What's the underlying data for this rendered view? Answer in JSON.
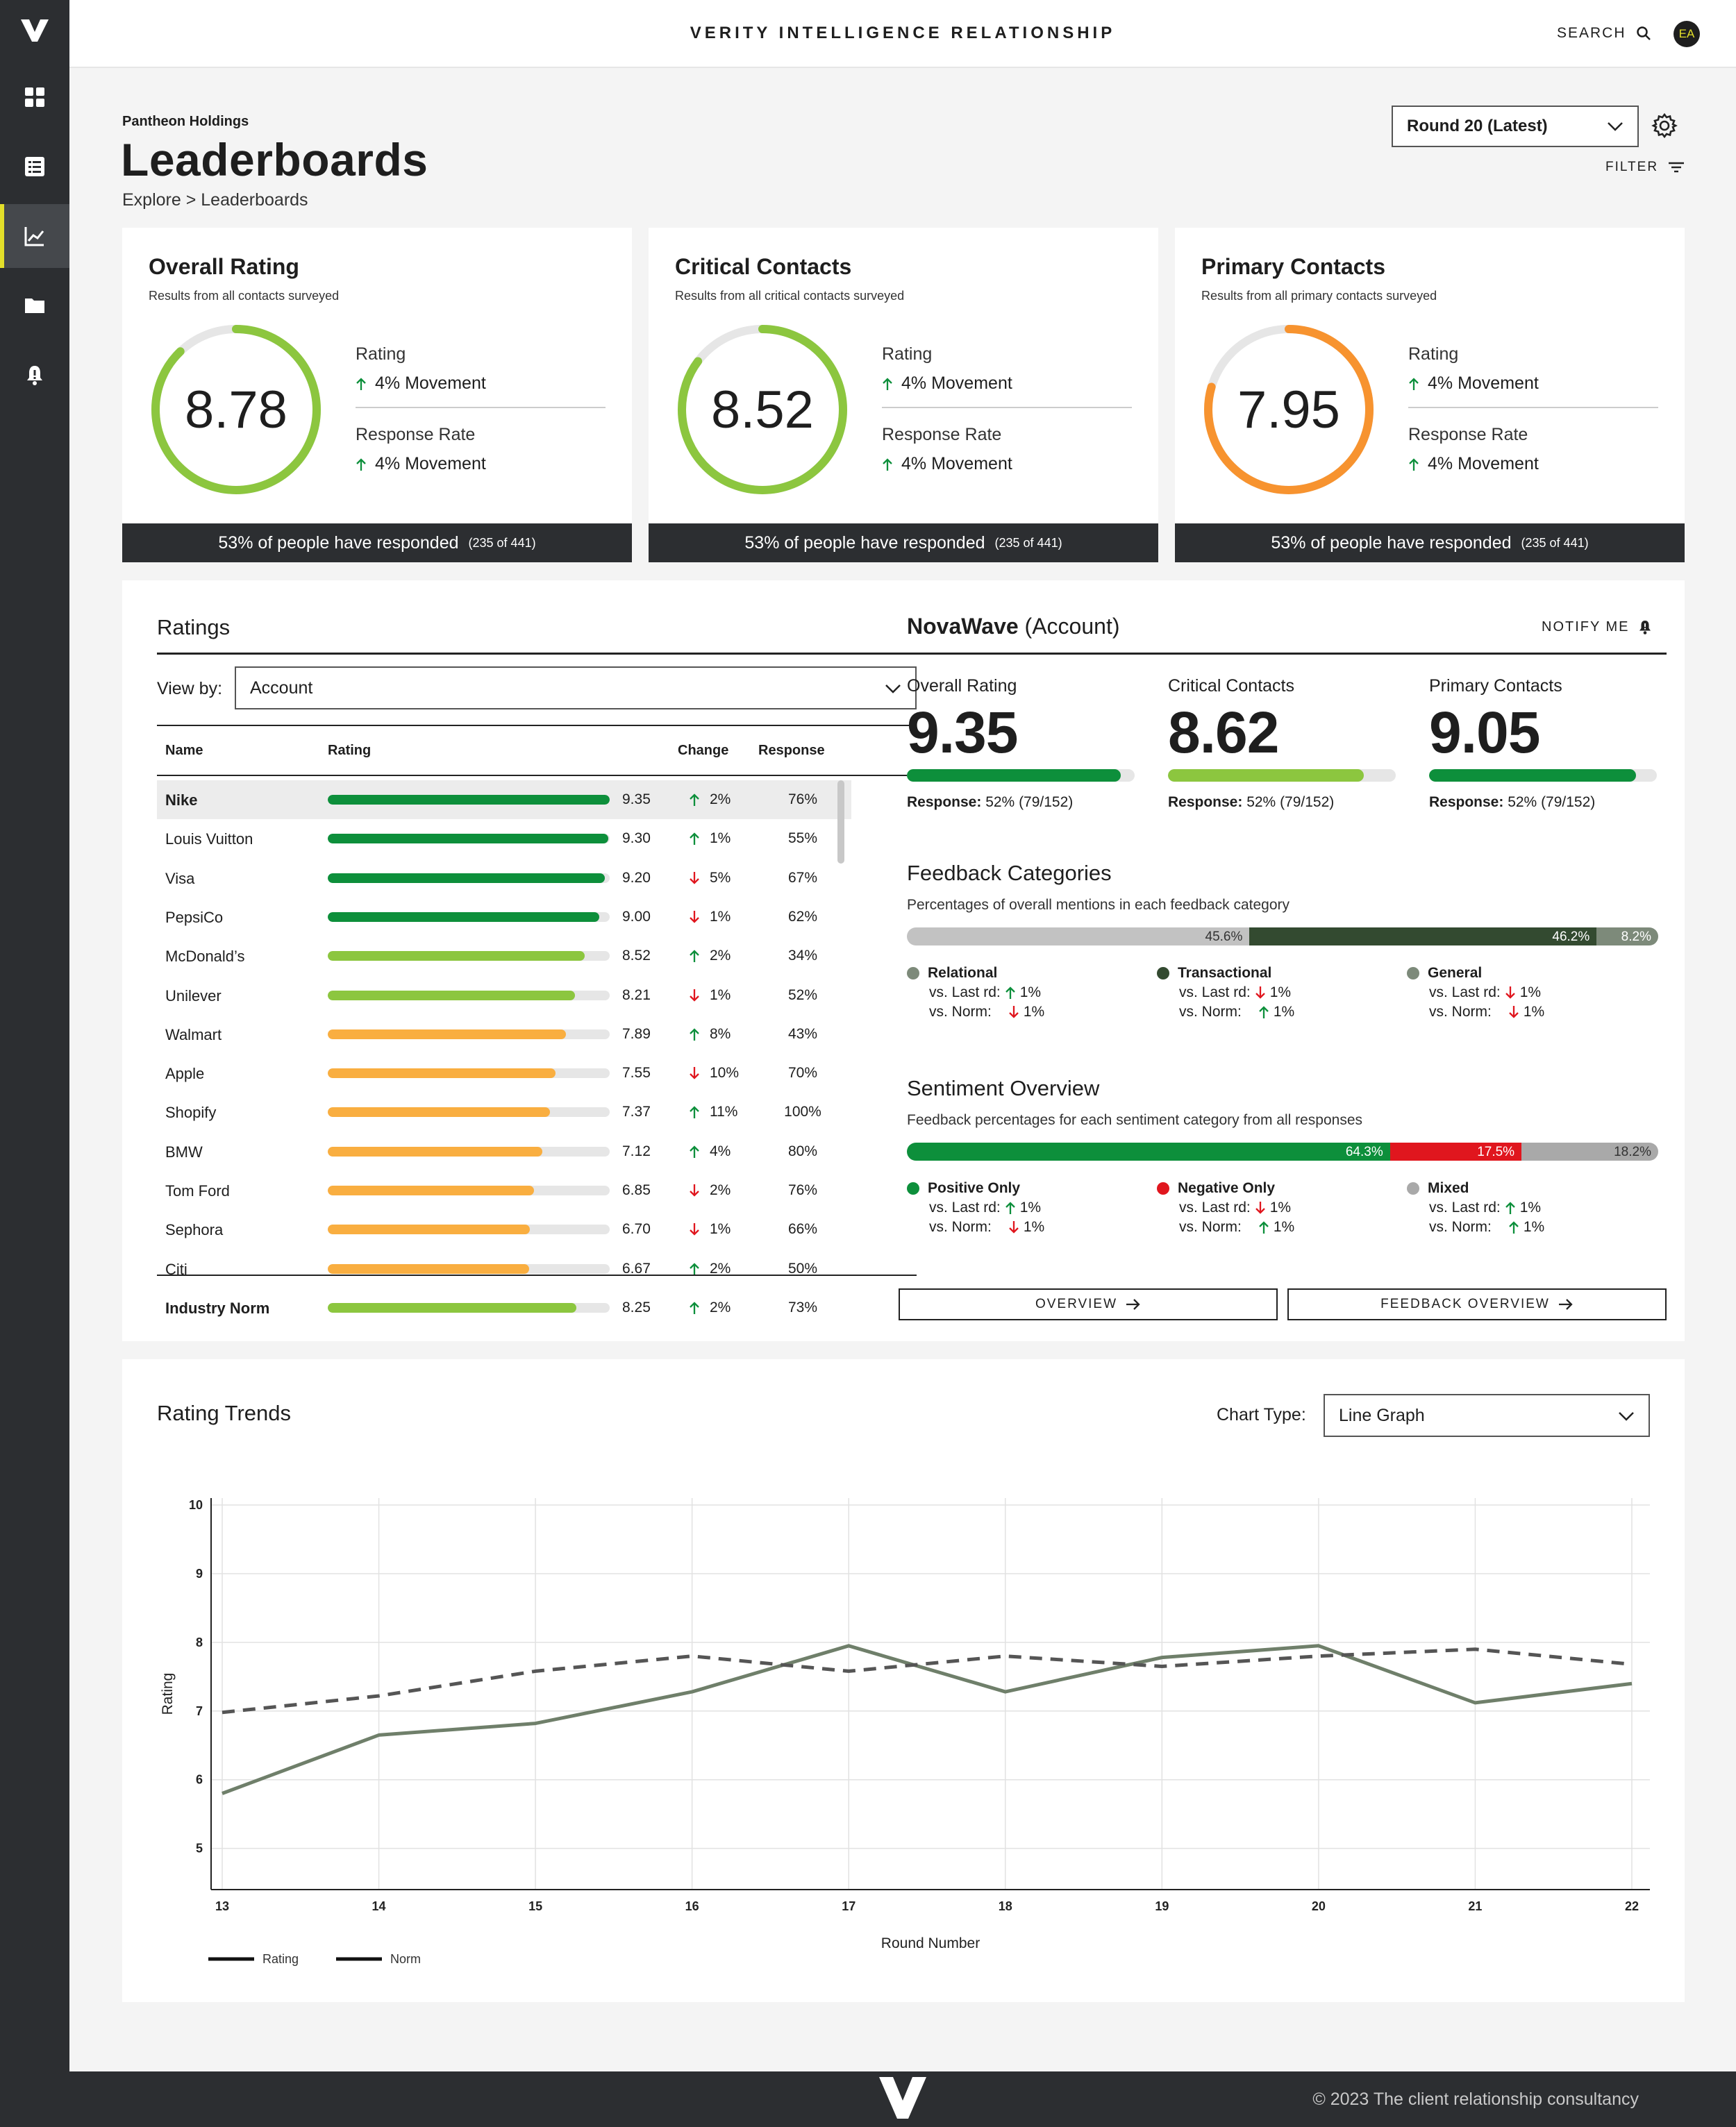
{
  "app": {
    "title": "VERITY INTELLIGENCE RELATIONSHIP",
    "search_label": "SEARCH",
    "avatar_initials": "EA"
  },
  "sidebar": {
    "items": [
      {
        "icon": "dashboard-icon",
        "active": false
      },
      {
        "icon": "list-icon",
        "active": false
      },
      {
        "icon": "chart-icon",
        "active": true
      },
      {
        "icon": "folder-icon",
        "active": false
      },
      {
        "icon": "alert-icon",
        "active": false
      }
    ]
  },
  "header": {
    "company": "Pantheon Holdings",
    "title": "Leaderboards",
    "breadcrumb": "Explore > Leaderboards",
    "round_select": "Round 20 (Latest)",
    "filter_label": "FILTER"
  },
  "cards": [
    {
      "title": "Overall Rating",
      "subtitle": "Results from all contacts surveyed",
      "value": "8.78",
      "score": 8.78,
      "color": "#8cc63f",
      "rating_label": "Rating",
      "rating_move": "4%  Movement",
      "response_label": "Response Rate",
      "response_move": "4%  Movement",
      "footer": "53% of people have responded",
      "footer_small": "(235 of 441)"
    },
    {
      "title": "Critical Contacts",
      "subtitle": "Results from all critical contacts surveyed",
      "value": "8.52",
      "score": 8.52,
      "color": "#8cc63f",
      "rating_label": "Rating",
      "rating_move": "4%  Movement",
      "response_label": "Response Rate",
      "response_move": "4%  Movement",
      "footer": "53% of people have responded",
      "footer_small": "(235 of 441)"
    },
    {
      "title": "Primary Contacts",
      "subtitle": "Results from all primary contacts surveyed",
      "value": "7.95",
      "score": 7.95,
      "color": "#f7932f",
      "rating_label": "Rating",
      "rating_move": "4%  Movement",
      "response_label": "Response Rate",
      "response_move": "4%  Movement",
      "footer": "53% of people have responded",
      "footer_small": "(235 of 441)"
    }
  ],
  "ratings": {
    "title": "Ratings",
    "view_by_label": "View by:",
    "view_by_value": "Account",
    "columns": {
      "name": "Name",
      "rating": "Rating",
      "change": "Change",
      "response": "Response"
    },
    "rows": [
      {
        "name": "Nike",
        "rating": 9.35,
        "rating_text": "9.35",
        "dir": "up",
        "change": "2%",
        "response": "76%",
        "color": "#0d8f3b",
        "selected": true
      },
      {
        "name": "Louis Vuitton",
        "rating": 9.3,
        "rating_text": "9.30",
        "dir": "up",
        "change": "1%",
        "response": "55%",
        "color": "#0d8f3b"
      },
      {
        "name": "Visa",
        "rating": 9.2,
        "rating_text": "9.20",
        "dir": "down",
        "change": "5%",
        "response": "67%",
        "color": "#0d8f3b"
      },
      {
        "name": "PepsiCo",
        "rating": 9.0,
        "rating_text": "9.00",
        "dir": "down",
        "change": "1%",
        "response": "62%",
        "color": "#0d8f3b"
      },
      {
        "name": "McDonald’s",
        "rating": 8.52,
        "rating_text": "8.52",
        "dir": "up",
        "change": "2%",
        "response": "34%",
        "color": "#8cc63f"
      },
      {
        "name": "Unilever",
        "rating": 8.21,
        "rating_text": "8.21",
        "dir": "down",
        "change": "1%",
        "response": "52%",
        "color": "#8cc63f"
      },
      {
        "name": "Walmart",
        "rating": 7.89,
        "rating_text": "7.89",
        "dir": "up",
        "change": "8%",
        "response": "43%",
        "color": "#f9ae40"
      },
      {
        "name": "Apple",
        "rating": 7.55,
        "rating_text": "7.55",
        "dir": "down",
        "change": "10%",
        "response": "70%",
        "color": "#f9ae40"
      },
      {
        "name": "Shopify",
        "rating": 7.37,
        "rating_text": "7.37",
        "dir": "up",
        "change": "11%",
        "response": "100%",
        "color": "#f9ae40"
      },
      {
        "name": "BMW",
        "rating": 7.12,
        "rating_text": "7.12",
        "dir": "up",
        "change": "4%",
        "response": "80%",
        "color": "#f9ae40"
      },
      {
        "name": "Tom Ford",
        "rating": 6.85,
        "rating_text": "6.85",
        "dir": "down",
        "change": "2%",
        "response": "76%",
        "color": "#f9ae40"
      },
      {
        "name": "Sephora",
        "rating": 6.7,
        "rating_text": "6.70",
        "dir": "down",
        "change": "1%",
        "response": "66%",
        "color": "#f9ae40"
      },
      {
        "name": "Citi",
        "rating": 6.67,
        "rating_text": "6.67",
        "dir": "up",
        "change": "2%",
        "response": "50%",
        "color": "#f9ae40"
      }
    ],
    "norm": {
      "name": "Industry Norm",
      "rating": 8.25,
      "rating_text": "8.25",
      "dir": "up",
      "change": "2%",
      "response": "73%",
      "color": "#8cc63f"
    }
  },
  "account": {
    "name": "NovaWave",
    "type": "(Account)",
    "notify_label": "NOTIFY ME",
    "metrics": [
      {
        "label": "Overall Rating",
        "value": "9.35",
        "fraction": 0.94,
        "color": "#0d8f3b",
        "response_label": "Response:",
        "response": "52% (79/152)"
      },
      {
        "label": "Critical Contacts",
        "value": "8.62",
        "fraction": 0.86,
        "color": "#8cc63f",
        "response_label": "Response:",
        "response": "52% (79/152)"
      },
      {
        "label": "Primary Contacts",
        "value": "9.05",
        "fraction": 0.91,
        "color": "#0d8f3b",
        "response_label": "Response:",
        "response": "52% (79/152)"
      }
    ],
    "feedback": {
      "title": "Feedback Categories",
      "subtitle": "Percentages of overall mentions in each feedback category",
      "segments": [
        {
          "label": "45.6%",
          "value": 45.6,
          "color": "#c2c2c2"
        },
        {
          "label": "46.2%",
          "value": 46.2,
          "color": "#334a30"
        },
        {
          "label": "8.2%",
          "value": 8.2,
          "color": "#7d8a7a"
        }
      ],
      "legend": [
        {
          "name": "Relational",
          "color": "#7d8a7a",
          "last_label": "vs. Last rd:",
          "last_dir": "up",
          "last": "1%",
          "norm_label": "vs. Norm:",
          "norm_dir": "down",
          "norm": "1%"
        },
        {
          "name": "Transactional",
          "color": "#334a30",
          "last_label": "vs. Last rd:",
          "last_dir": "down",
          "last": "1%",
          "norm_label": "vs. Norm:",
          "norm_dir": "up",
          "norm": "1%"
        },
        {
          "name": "General",
          "color": "#7d8a7a",
          "last_label": "vs. Last rd:",
          "last_dir": "down",
          "last": "1%",
          "norm_label": "vs. Norm:",
          "norm_dir": "down",
          "norm": "1%"
        }
      ]
    },
    "sentiment": {
      "title": "Sentiment Overview",
      "subtitle": "Feedback percentages for each sentiment category from all responses",
      "segments": [
        {
          "label": "64.3%",
          "value": 64.3,
          "color": "#0d8f3b"
        },
        {
          "label": "17.5%",
          "value": 17.5,
          "color": "#e0161e"
        },
        {
          "label": "18.2%",
          "value": 18.2,
          "color": "#a9a9a9"
        }
      ],
      "legend": [
        {
          "name": "Positive Only",
          "color": "#0d8f3b",
          "last_label": "vs. Last rd:",
          "last_dir": "up",
          "last": "1%",
          "norm_label": "vs. Norm:",
          "norm_dir": "down",
          "norm": "1%"
        },
        {
          "name": "Negative Only",
          "color": "#e0161e",
          "last_label": "vs. Last rd:",
          "last_dir": "down",
          "last": "1%",
          "norm_label": "vs. Norm:",
          "norm_dir": "up",
          "norm": "1%"
        },
        {
          "name": "Mixed",
          "color": "#a9a9a9",
          "last_label": "vs. Last rd:",
          "last_dir": "up",
          "last": "1%",
          "norm_label": "vs. Norm:",
          "norm_dir": "up",
          "norm": "1%"
        }
      ]
    },
    "overview_btn": "OVERVIEW",
    "feedback_btn": "FEEDBACK OVERVIEW"
  },
  "trends": {
    "title": "Rating Trends",
    "chart_type_label": "Chart Type:",
    "chart_type_value": "Line Graph"
  },
  "chart_data": {
    "type": "line",
    "title": "",
    "xlabel": "Round Number",
    "ylabel": "Rating",
    "x": [
      13,
      14,
      15,
      16,
      17,
      18,
      19,
      20,
      21,
      22
    ],
    "ylim": [
      4.4,
      10
    ],
    "yticks": [
      5,
      6,
      7,
      8,
      9,
      10
    ],
    "grid": true,
    "legend_position": "bottom-left",
    "series": [
      {
        "name": "Rating",
        "style": "solid",
        "color": "#6f7f6a",
        "values": [
          5.8,
          6.65,
          6.82,
          7.28,
          7.95,
          7.28,
          7.78,
          7.95,
          7.12,
          7.4
        ]
      },
      {
        "name": "Norm",
        "style": "dashed",
        "color": "#555555",
        "values": [
          6.98,
          7.22,
          7.58,
          7.8,
          7.58,
          7.8,
          7.65,
          7.8,
          7.9,
          7.68
        ]
      }
    ]
  },
  "footer": {
    "copyright": "© 2023 The client relationship consultancy"
  }
}
